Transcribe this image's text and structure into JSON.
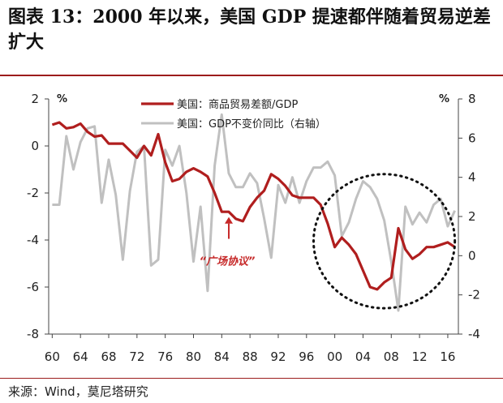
{
  "title": "图表 13：2000 年以来，美国 GDP 提速都伴随着贸易逆差扩大",
  "source": "来源：Wind，莫尼塔研究",
  "colors": {
    "primary": "#b01e1e",
    "secondary": "#c0c0c0",
    "annotation": "#c62828",
    "rule": "#9c1c1c"
  },
  "chart_data": {
    "type": "line",
    "x_ticks": [
      "60",
      "64",
      "68",
      "72",
      "76",
      "80",
      "84",
      "88",
      "92",
      "96",
      "00",
      "04",
      "08",
      "12",
      "16"
    ],
    "xlim": [
      1959.5,
      2017.5
    ],
    "left_axis": {
      "unit": "%",
      "ylim": [
        -8,
        2
      ],
      "ticks": [
        "2",
        "0",
        "-2",
        "-4",
        "-6",
        "-8"
      ]
    },
    "right_axis": {
      "unit": "%",
      "ylim": [
        -4,
        8
      ],
      "ticks": [
        "8",
        "6",
        "4",
        "2",
        "0",
        "-2",
        "-4"
      ]
    },
    "legend": {
      "position": "top-center"
    },
    "series": [
      {
        "name": "美国：商品贸易差额/GDP",
        "axis": "left",
        "x": [
          1960,
          1961,
          1962,
          1963,
          1964,
          1965,
          1966,
          1967,
          1968,
          1969,
          1970,
          1971,
          1972,
          1973,
          1974,
          1975,
          1976,
          1977,
          1978,
          1979,
          1980,
          1981,
          1982,
          1983,
          1984,
          1985,
          1986,
          1987,
          1988,
          1989,
          1990,
          1991,
          1992,
          1993,
          1994,
          1995,
          1996,
          1997,
          1998,
          1999,
          2000,
          2001,
          2002,
          2003,
          2004,
          2005,
          2006,
          2007,
          2008,
          2009,
          2010,
          2011,
          2012,
          2013,
          2014,
          2015,
          2016,
          2017
        ],
        "values": [
          0.9,
          1.0,
          0.75,
          0.8,
          0.95,
          0.6,
          0.4,
          0.45,
          0.1,
          0.1,
          0.1,
          -0.2,
          -0.5,
          0.0,
          -0.4,
          0.5,
          -0.7,
          -1.5,
          -1.4,
          -1.1,
          -0.95,
          -1.1,
          -1.3,
          -2.0,
          -2.8,
          -2.8,
          -3.1,
          -3.2,
          -2.6,
          -2.2,
          -1.9,
          -1.2,
          -1.4,
          -1.7,
          -2.1,
          -2.2,
          -2.2,
          -2.2,
          -2.5,
          -3.3,
          -4.3,
          -3.9,
          -4.2,
          -4.6,
          -5.3,
          -6.0,
          -6.1,
          -5.8,
          -5.6,
          -3.5,
          -4.4,
          -4.8,
          -4.6,
          -4.3,
          -4.3,
          -4.2,
          -4.1,
          -4.3
        ]
      },
      {
        "name": "美国：GDP不变价同比（右轴）",
        "axis": "right",
        "x": [
          1960,
          1961,
          1962,
          1963,
          1964,
          1965,
          1966,
          1967,
          1968,
          1969,
          1970,
          1971,
          1972,
          1973,
          1974,
          1975,
          1976,
          1977,
          1978,
          1979,
          1980,
          1981,
          1982,
          1983,
          1984,
          1985,
          1986,
          1987,
          1988,
          1989,
          1990,
          1991,
          1992,
          1993,
          1994,
          1995,
          1996,
          1997,
          1998,
          1999,
          2000,
          2001,
          2002,
          2003,
          2004,
          2005,
          2006,
          2007,
          2008,
          2009,
          2010,
          2011,
          2012,
          2013,
          2014,
          2015,
          2016,
          2017
        ],
        "values": [
          2.6,
          2.6,
          6.1,
          4.4,
          5.8,
          6.5,
          6.6,
          2.7,
          4.9,
          3.1,
          -0.2,
          3.3,
          5.3,
          5.6,
          -0.5,
          -0.2,
          5.4,
          4.6,
          5.6,
          3.2,
          -0.3,
          2.5,
          -1.8,
          4.6,
          7.2,
          4.2,
          3.5,
          3.5,
          4.2,
          3.7,
          1.9,
          -0.1,
          3.6,
          2.7,
          4.0,
          2.7,
          3.8,
          4.5,
          4.5,
          4.8,
          4.1,
          1.0,
          1.7,
          2.9,
          3.8,
          3.5,
          2.9,
          1.8,
          -0.3,
          -2.8,
          2.5,
          1.6,
          2.2,
          1.7,
          2.6,
          2.9,
          1.5,
          2.3
        ]
      }
    ],
    "annotations": [
      {
        "text": "“广场协议”",
        "x": 1985
      },
      {
        "type": "ellipse",
        "x_range": [
          1997,
          2017
        ]
      }
    ]
  }
}
